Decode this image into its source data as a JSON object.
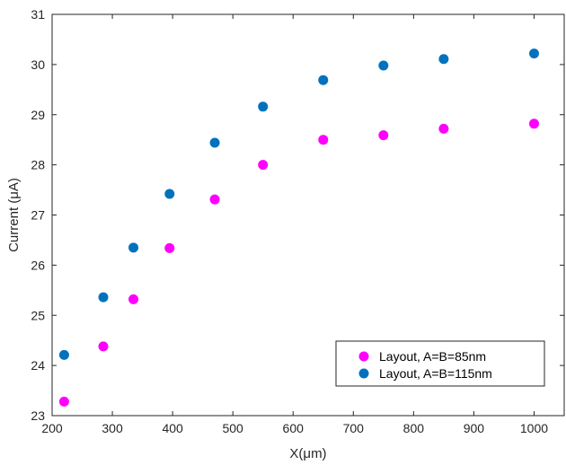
{
  "chart_data": {
    "type": "scatter",
    "title": "",
    "xlabel": "X(μm)",
    "ylabel": "Current (μA)",
    "xlim": [
      200,
      1050
    ],
    "ylim": [
      23,
      31
    ],
    "xticks": [
      200,
      300,
      400,
      500,
      600,
      700,
      800,
      900,
      1000
    ],
    "yticks": [
      23,
      24,
      25,
      26,
      27,
      28,
      29,
      30,
      31
    ],
    "grid": false,
    "legend_position": "bottom-right",
    "series": [
      {
        "name": "Layout, A=B=85nm",
        "color": "#ff00ff",
        "x": [
          220,
          285,
          335,
          395,
          470,
          550,
          650,
          750,
          850,
          1000
        ],
        "y": [
          23.28,
          24.38,
          25.32,
          26.34,
          27.31,
          28.0,
          28.5,
          28.59,
          28.72,
          28.82
        ]
      },
      {
        "name": "Layout, A=B=115nm",
        "color": "#0072bd",
        "x": [
          220,
          285,
          335,
          395,
          470,
          550,
          650,
          750,
          850,
          1000
        ],
        "y": [
          24.21,
          25.36,
          26.35,
          27.42,
          28.44,
          29.16,
          29.69,
          29.98,
          30.11,
          30.22
        ]
      }
    ]
  }
}
